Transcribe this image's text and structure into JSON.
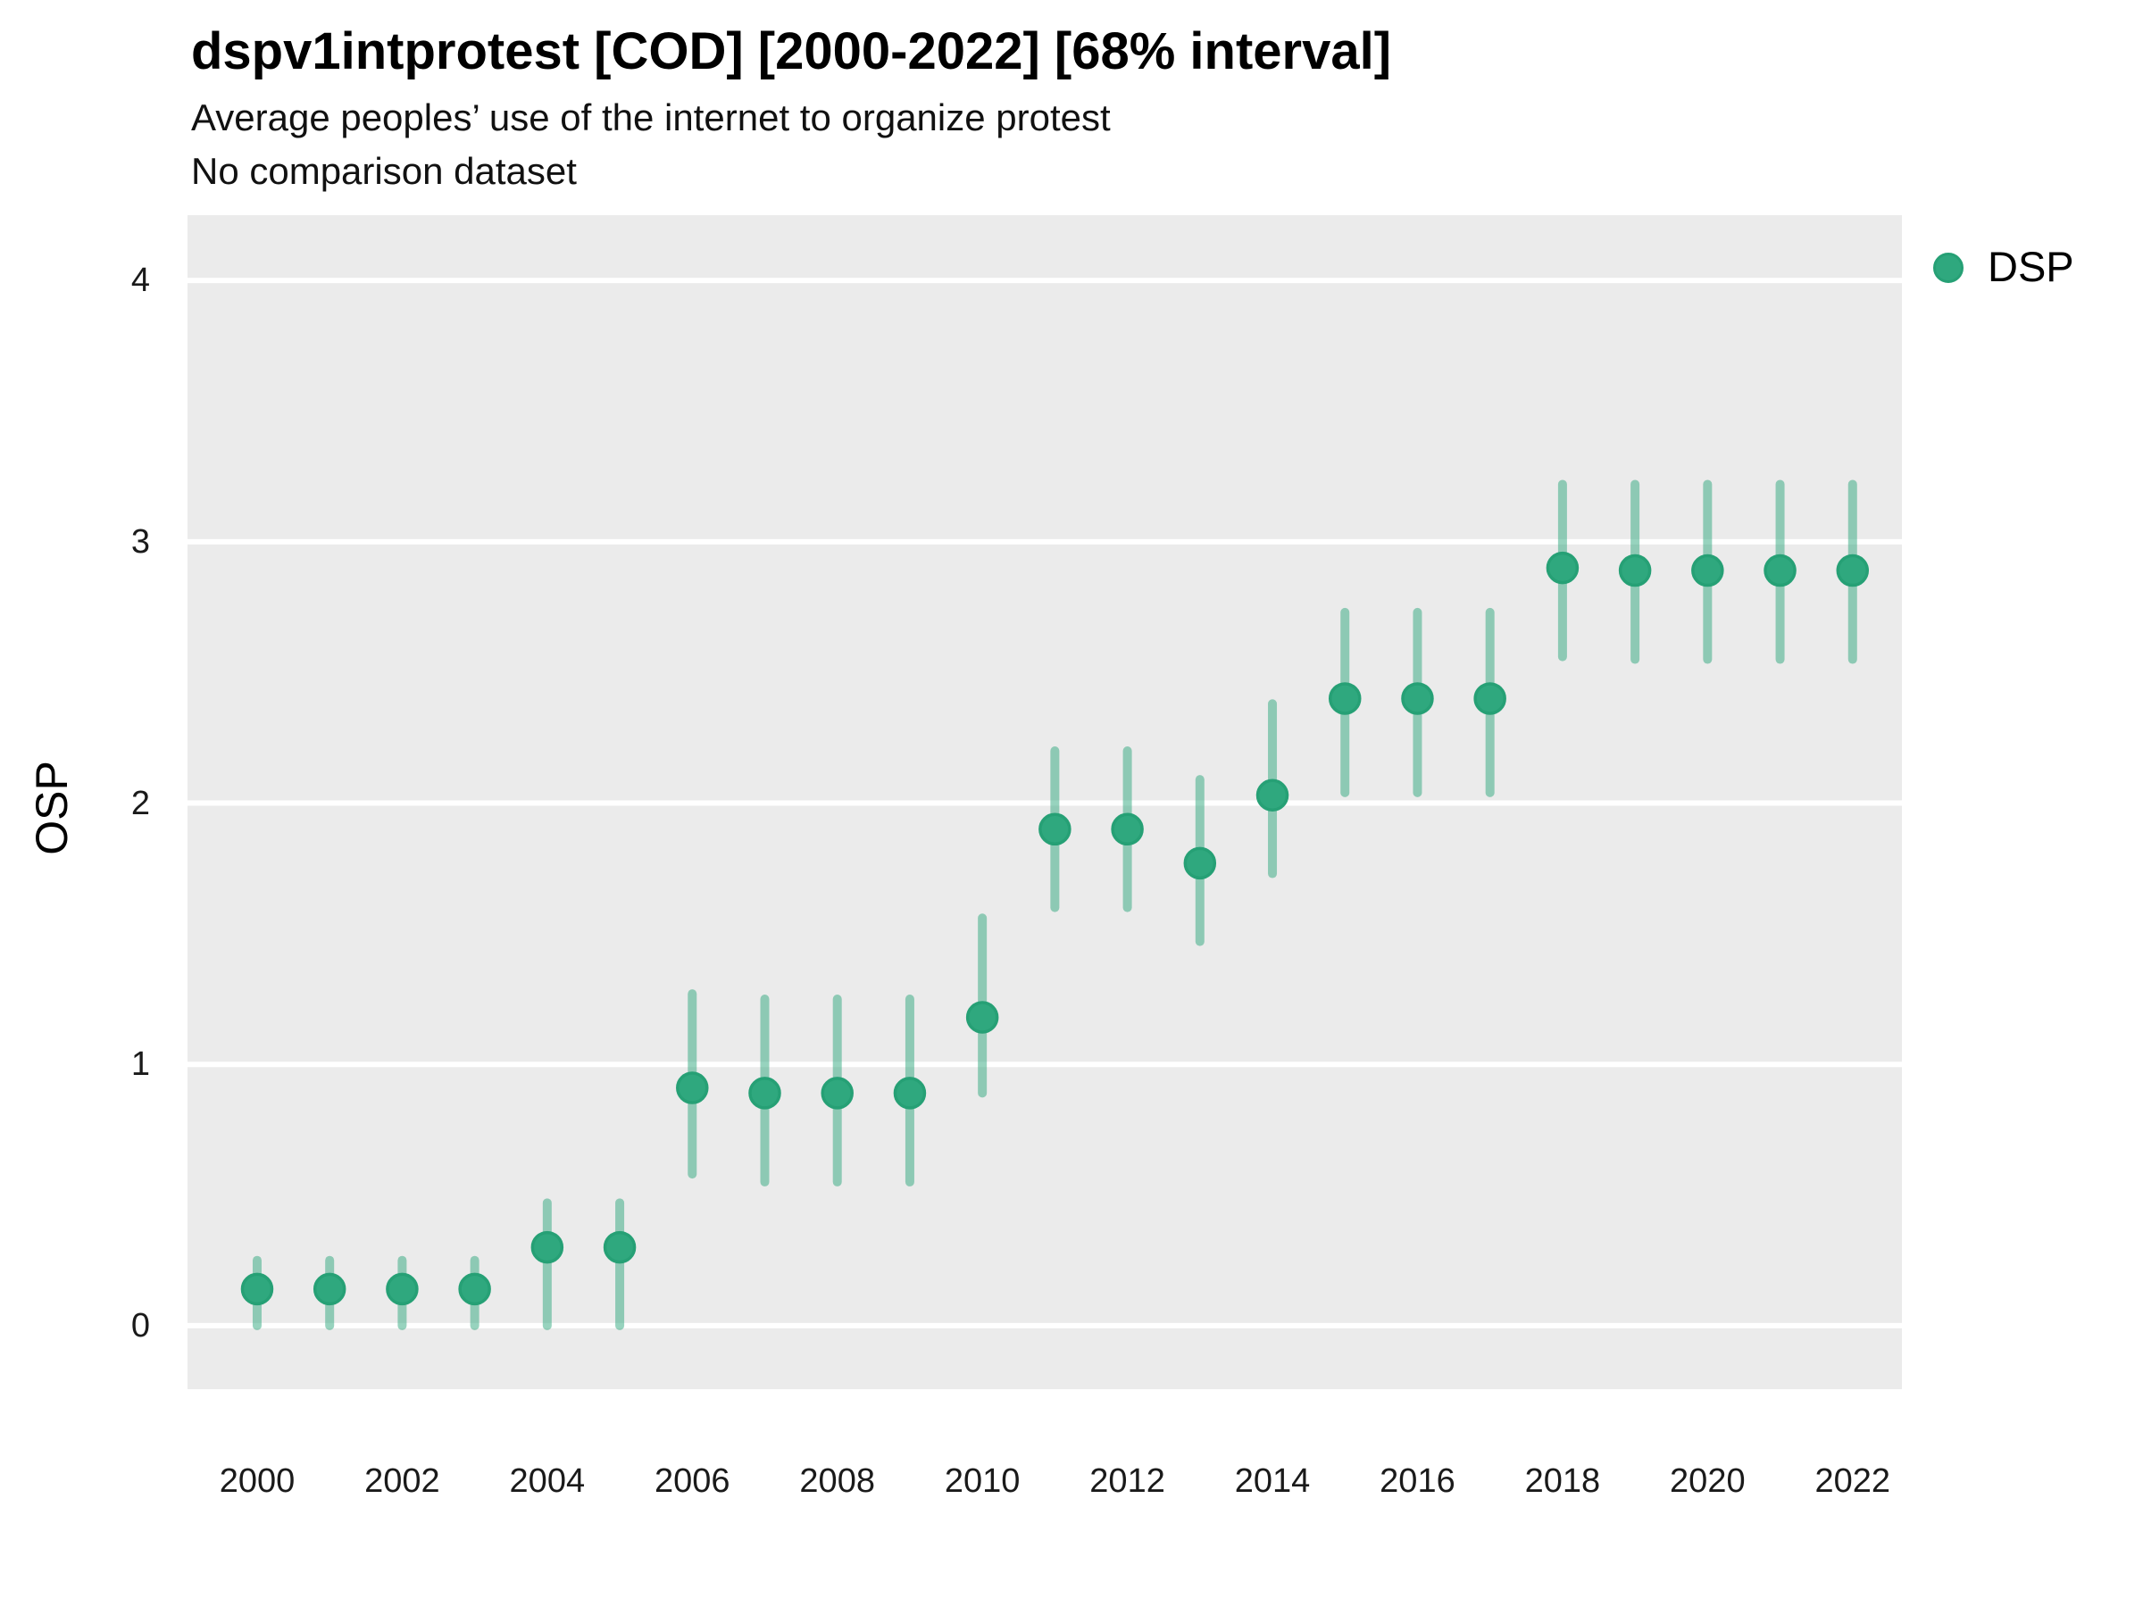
{
  "header": {
    "title": "dspv1intprotest [COD] [2000-2022] [68% interval]",
    "subtitle": "Average peoples’ use of the internet to organize protest",
    "note": "No comparison dataset"
  },
  "y_axis": {
    "label": "OSP"
  },
  "legend": {
    "label": "DSP",
    "position": "right-top",
    "marker_color": "#2fa87e"
  },
  "colors": {
    "panel_background": "#ebebeb",
    "gridline": "#ffffff",
    "point_fill": "#2fa87e",
    "point_stroke": "#26a075",
    "errorbar": "rgba(47,168,126,0.5)"
  },
  "chart_data": {
    "type": "scatter",
    "title": "dspv1intprotest [COD] [2000-2022] [68% interval]",
    "subtitle": "Average peoples’ use of the internet to organize protest",
    "note": "No comparison dataset",
    "interval": "68%",
    "xlabel": "",
    "ylabel": "OSP",
    "legend_position": "right-top",
    "grid": "major-horizontal-only",
    "x": [
      2000,
      2001,
      2002,
      2003,
      2004,
      2005,
      2006,
      2007,
      2008,
      2009,
      2010,
      2011,
      2012,
      2013,
      2014,
      2015,
      2016,
      2017,
      2018,
      2019,
      2020,
      2021,
      2022
    ],
    "series": [
      {
        "name": "DSP",
        "values": [
          0.14,
          0.14,
          0.14,
          0.14,
          0.3,
          0.3,
          0.91,
          0.89,
          0.89,
          0.89,
          1.18,
          1.9,
          1.9,
          1.77,
          2.03,
          2.4,
          2.4,
          2.4,
          2.9,
          2.89,
          2.89,
          2.89,
          2.89
        ],
        "lower": [
          0.0,
          0.0,
          0.0,
          0.0,
          0.0,
          0.0,
          0.58,
          0.55,
          0.55,
          0.55,
          0.89,
          1.6,
          1.6,
          1.47,
          1.73,
          2.04,
          2.04,
          2.04,
          2.56,
          2.55,
          2.55,
          2.55,
          2.55
        ],
        "upper": [
          0.25,
          0.25,
          0.25,
          0.25,
          0.47,
          0.47,
          1.27,
          1.25,
          1.25,
          1.25,
          1.56,
          2.2,
          2.2,
          2.09,
          2.38,
          2.73,
          2.73,
          2.73,
          3.22,
          3.22,
          3.22,
          3.22,
          3.22
        ]
      }
    ],
    "xticks": [
      2000,
      2002,
      2004,
      2006,
      2008,
      2010,
      2012,
      2014,
      2016,
      2018,
      2020,
      2022
    ],
    "yticks": [
      0,
      1,
      2,
      3,
      4
    ],
    "xlim": [
      1999.04,
      2022.68
    ],
    "ylim": [
      -0.243,
      4.25
    ]
  }
}
